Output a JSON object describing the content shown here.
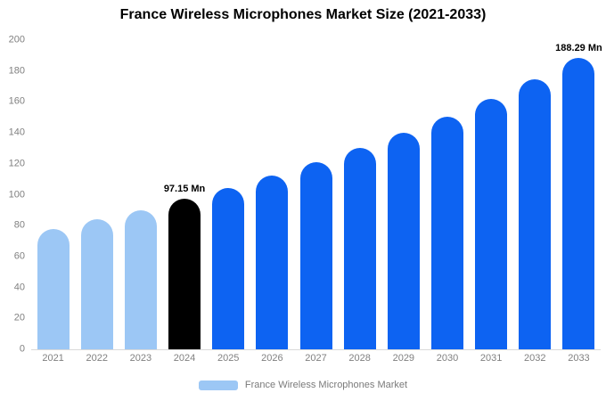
{
  "title": "France Wireless Microphones Market Size (2021-2033)",
  "legend": {
    "label": "France Wireless Microphones Market",
    "swatch_color": "#9cc7f5"
  },
  "colors": {
    "light_blue": "#9cc7f5",
    "primary_blue": "#0d63f2",
    "highlight_black": "#000000",
    "axis_text": "#808080"
  },
  "chart_data": {
    "type": "bar",
    "title": "France Wireless Microphones Market Size (2021-2033)",
    "categories": [
      "2021",
      "2022",
      "2023",
      "2024",
      "2025",
      "2026",
      "2027",
      "2028",
      "2029",
      "2030",
      "2031",
      "2032",
      "2033"
    ],
    "values": [
      78,
      84,
      90,
      97.15,
      104.5,
      112.4,
      121,
      130.2,
      140.1,
      150.7,
      162.1,
      174.4,
      188.29
    ],
    "bar_colors": [
      "#9cc7f5",
      "#9cc7f5",
      "#9cc7f5",
      "#000000",
      "#0d63f2",
      "#0d63f2",
      "#0d63f2",
      "#0d63f2",
      "#0d63f2",
      "#0d63f2",
      "#0d63f2",
      "#0d63f2",
      "#0d63f2"
    ],
    "data_labels": [
      "",
      "",
      "",
      "97.15 Mn",
      "",
      "",
      "",
      "",
      "",
      "",
      "",
      "",
      "188.29 Mn"
    ],
    "xlabel": "",
    "ylabel": "",
    "ylim": [
      0,
      200
    ],
    "ytick_step": 20,
    "grid": false,
    "legend_position": "bottom",
    "legend_entries": [
      "France Wireless Microphones Market"
    ]
  }
}
